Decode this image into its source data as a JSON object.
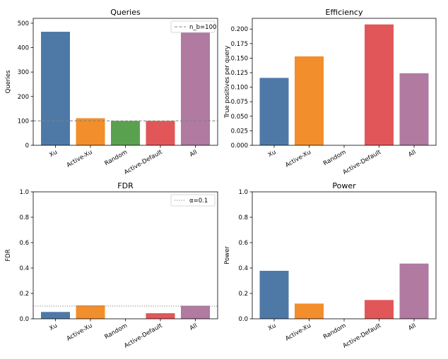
{
  "chart_data": [
    {
      "type": "bar",
      "title": "Queries",
      "xlabel": "",
      "ylabel": "Queries",
      "categories": [
        "Xu",
        "Active-Xu",
        "Random",
        "Active-Default",
        "All"
      ],
      "values": [
        465,
        111,
        100,
        100,
        493
      ],
      "ylim": [
        0,
        520
      ],
      "yticks": [
        0,
        100,
        200,
        300,
        400,
        500
      ],
      "ytick_labels": [
        "0",
        "100",
        "200",
        "300",
        "400",
        "500"
      ],
      "reference_line": {
        "value": 100,
        "label": "n_b=100",
        "style": "dashed",
        "color": "#7f7f7f"
      },
      "legend": "top-right",
      "grid": false
    },
    {
      "type": "bar",
      "title": "Efficiency",
      "xlabel": "",
      "ylabel": "True positives per query",
      "categories": [
        "Xu",
        "Active-Xu",
        "Random",
        "Active-Default",
        "All"
      ],
      "values": [
        0.116,
        0.153,
        0.0,
        0.208,
        0.124
      ],
      "ylim": [
        0,
        0.2185
      ],
      "yticks": [
        0,
        0.025,
        0.05,
        0.075,
        0.1,
        0.125,
        0.15,
        0.175,
        0.2
      ],
      "ytick_labels": [
        "0.000",
        "0.025",
        "0.050",
        "0.075",
        "0.100",
        "0.125",
        "0.150",
        "0.175",
        "0.200"
      ],
      "grid": false
    },
    {
      "type": "bar",
      "title": "FDR",
      "xlabel": "",
      "ylabel": "FDR",
      "categories": [
        "Xu",
        "Active-Xu",
        "Random",
        "Active-Default",
        "All"
      ],
      "values": [
        0.054,
        0.106,
        0.0,
        0.044,
        0.103
      ],
      "ylim": [
        0,
        1.0
      ],
      "yticks": [
        0,
        0.2,
        0.4,
        0.6,
        0.8,
        1.0
      ],
      "ytick_labels": [
        "0.0",
        "0.2",
        "0.4",
        "0.6",
        "0.8",
        "1.0"
      ],
      "reference_line": {
        "value": 0.1,
        "label": "α=0.1",
        "style": "dotted",
        "color": "#7f7f7f"
      },
      "legend": "top-right",
      "grid": false
    },
    {
      "type": "bar",
      "title": "Power",
      "xlabel": "",
      "ylabel": "Power",
      "categories": [
        "Xu",
        "Active-Xu",
        "Random",
        "Active-Default",
        "All"
      ],
      "values": [
        0.378,
        0.12,
        0.0,
        0.148,
        0.435
      ],
      "ylim": [
        0,
        1.0
      ],
      "yticks": [
        0,
        0.2,
        0.4,
        0.6,
        0.8,
        1.0
      ],
      "ytick_labels": [
        "0.0",
        "0.2",
        "0.4",
        "0.6",
        "0.8",
        "1.0"
      ],
      "grid": false
    }
  ],
  "colors": [
    "#4e79a7",
    "#f28e2b",
    "#59a14f",
    "#e15759",
    "#b07aa1"
  ]
}
